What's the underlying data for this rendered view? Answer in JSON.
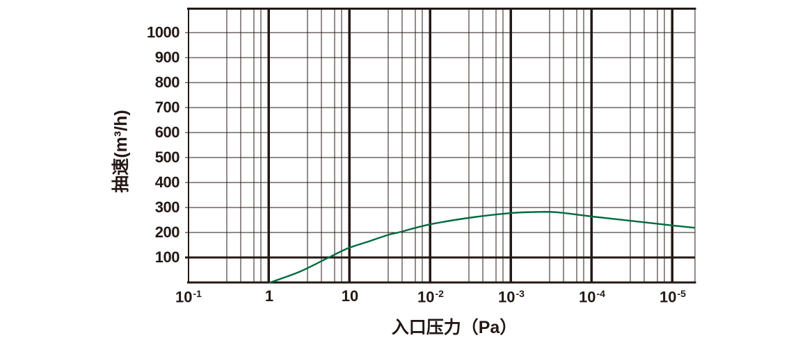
{
  "chart_data": {
    "type": "line",
    "title": "",
    "xlabel": "入口压力（Pa）",
    "ylabel": "抽速(m³/h)",
    "x_ticks": [
      {
        "base": "10",
        "exp": "-1",
        "d": 0
      },
      {
        "base": "1",
        "exp": "",
        "d": 1
      },
      {
        "base": "10",
        "exp": "",
        "d": 2
      },
      {
        "base": "10",
        "exp": "-2",
        "d": 3
      },
      {
        "base": "10",
        "exp": "-3",
        "d": 4
      },
      {
        "base": "10",
        "exp": "-4",
        "d": 5
      },
      {
        "base": "10",
        "exp": "-5",
        "d": 6
      }
    ],
    "y_ticks": [
      100,
      200,
      300,
      400,
      500,
      600,
      700,
      800,
      900,
      1000
    ],
    "ylim": [
      0,
      1100
    ],
    "x_decades_total": 6.276,
    "grid": {
      "on": true,
      "line_color": "#231815",
      "minor_offsets_per_decade": [
        0.474,
        0.647,
        0.81,
        0.897,
        0.983
      ],
      "emphasized_y_line": 100
    },
    "legend": "none",
    "series": [
      {
        "name": "pumping-speed-curve",
        "color": "#006b3e",
        "points_decade_vs_speed": [
          [
            1.01,
            0
          ],
          [
            1.37,
            42
          ],
          [
            1.72,
            97
          ],
          [
            1.97,
            136
          ],
          [
            2.23,
            164
          ],
          [
            2.49,
            192
          ],
          [
            2.6,
            200
          ],
          [
            3.0,
            233
          ],
          [
            3.53,
            261
          ],
          [
            4.0,
            278
          ],
          [
            4.3,
            282
          ],
          [
            4.56,
            281
          ],
          [
            5.0,
            264
          ],
          [
            5.5,
            246
          ],
          [
            6.0,
            228
          ],
          [
            6.27,
            219
          ]
        ]
      }
    ]
  },
  "colors": {
    "axis_and_grid": "#231815",
    "curve": "#006b3e",
    "background": "#ffffff"
  }
}
